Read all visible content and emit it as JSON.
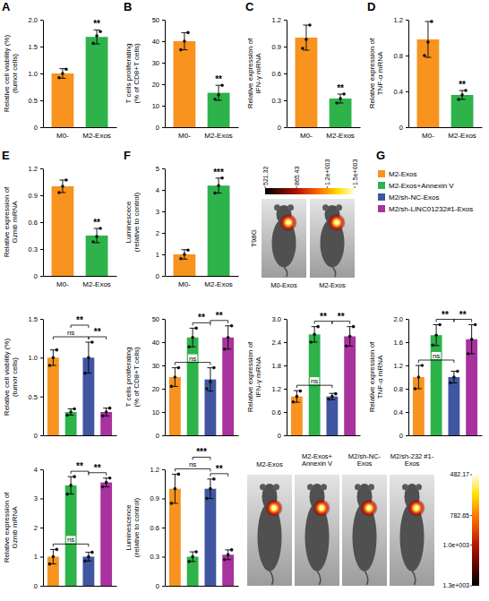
{
  "chart_data": [
    {
      "type": "bar",
      "panel": "A",
      "ylabel": "Relative cell viability (%)\n(tumor cells)",
      "categories": [
        "M0-",
        "M2-Exos"
      ],
      "values": [
        1.0,
        1.68
      ],
      "errors": [
        0.09,
        0.13
      ],
      "points": [
        [
          0.92,
          1.0,
          1.08
        ],
        [
          1.56,
          1.7,
          1.78
        ]
      ],
      "colors": [
        "#F7931E",
        "#2DB34A"
      ],
      "ylim": [
        0,
        2
      ],
      "yticks": [
        0,
        0.5,
        {
          "value": 1,
          "label": "1.0"
        },
        1.5,
        {
          "value": 2,
          "label": "2.0"
        }
      ],
      "annotations": [
        {
          "text": "**",
          "at": 1
        }
      ]
    },
    {
      "type": "bar",
      "panel": "B",
      "ylabel": "T cells proliferating\n(% of CD8+T cells)",
      "categories": [
        "M0-",
        "M2-Exos"
      ],
      "values": [
        40,
        16
      ],
      "errors": [
        4,
        3.5
      ],
      "points": [
        [
          36,
          40,
          44
        ],
        [
          13,
          15,
          19.5
        ]
      ],
      "colors": [
        "#F7931E",
        "#2DB34A"
      ],
      "ylim": [
        0,
        50
      ],
      "yticks": [
        0,
        10,
        20,
        30,
        40,
        50
      ],
      "annotations": [
        {
          "text": "**",
          "at": 1
        }
      ]
    },
    {
      "type": "bar",
      "panel": "C",
      "ylabel": "Relative expression of\nIFN-γ mRNA",
      "categories": [
        "M0-",
        "M2-Exos"
      ],
      "values": [
        1.0,
        0.32
      ],
      "errors": [
        0.14,
        0.05
      ],
      "points": [
        [
          0.88,
          0.98,
          1.14
        ],
        [
          0.27,
          0.32,
          0.37
        ]
      ],
      "colors": [
        "#F7931E",
        "#2DB34A"
      ],
      "ylim": [
        0,
        1.2
      ],
      "yticks": [
        0,
        0.3,
        0.6,
        0.9,
        1.2
      ],
      "annotations": [
        {
          "text": "**",
          "at": 1
        }
      ]
    },
    {
      "type": "bar",
      "panel": "D",
      "ylabel": "Relative expression of\nTNF-α mRNA",
      "categories": [
        "M0-",
        "M2-Exos"
      ],
      "values": [
        0.98,
        0.36
      ],
      "errors": [
        0.2,
        0.05
      ],
      "points": [
        [
          0.8,
          0.95,
          1.18
        ],
        [
          0.31,
          0.36,
          0.41
        ]
      ],
      "colors": [
        "#F7931E",
        "#2DB34A"
      ],
      "ylim": [
        0,
        1.2
      ],
      "yticks": [
        0,
        0.4,
        0.8,
        1.2
      ],
      "annotations": [
        {
          "text": "**",
          "at": 1
        }
      ]
    },
    {
      "type": "bar",
      "panel": "E",
      "ylabel": "Relative expression of\nGzmb mRNA",
      "categories": [
        "M0-",
        "M2-Exos"
      ],
      "values": [
        1.0,
        0.45
      ],
      "errors": [
        0.07,
        0.08
      ],
      "points": [
        [
          0.93,
          1.0,
          1.07
        ],
        [
          0.38,
          0.44,
          0.53
        ]
      ],
      "colors": [
        "#F7931E",
        "#2DB34A"
      ],
      "ylim": [
        0,
        1.2
      ],
      "yticks": [
        0,
        0.3,
        0.6,
        0.9,
        1.2
      ],
      "annotations": [
        {
          "text": "**",
          "at": 1
        }
      ]
    },
    {
      "type": "bar",
      "panel": "F",
      "ylabel": "Luminescece\n(relative to control)",
      "categories": [
        "M0-",
        "M2-Exos"
      ],
      "values": [
        1.0,
        4.2
      ],
      "errors": [
        0.22,
        0.35
      ],
      "points": [
        [
          0.8,
          1.0,
          1.2
        ],
        [
          3.85,
          4.2,
          4.55
        ]
      ],
      "colors": [
        "#F7931E",
        "#2DB34A"
      ],
      "ylim": [
        0,
        5
      ],
      "yticks": [
        0,
        1,
        2,
        3,
        4,
        5
      ],
      "annotations": [
        {
          "text": "***",
          "at": 1
        }
      ]
    },
    {
      "type": "bar",
      "ylabel": "Relative cell viability (%)\n(tumor cells)",
      "categories": [
        null,
        null,
        null,
        null
      ],
      "values": [
        1.0,
        0.3,
        1.0,
        0.3
      ],
      "errors": [
        0.1,
        0.04,
        0.2,
        0.05
      ],
      "points": [
        [
          0.9,
          1.0,
          1.1
        ],
        [
          0.26,
          0.3,
          0.34
        ],
        [
          0.8,
          1.0,
          1.2
        ],
        [
          0.25,
          0.3,
          0.35
        ]
      ],
      "colors": [
        "#F7931E",
        "#2DB34A",
        "#4056A1",
        "#A8329E"
      ],
      "ylim": [
        0,
        1.5
      ],
      "yticks": [
        0,
        0.5,
        {
          "value": 1,
          "label": "1.0"
        },
        1.5
      ],
      "annotations": [
        {
          "text": "ns",
          "from": 0,
          "to": 2
        },
        {
          "text": "**",
          "from": 1,
          "to": 2
        },
        {
          "text": "**",
          "from": 2,
          "to": 3
        }
      ]
    },
    {
      "type": "bar",
      "ylabel": "T cells proliferating\n(% of CD8+T cells)",
      "categories": [
        null,
        null,
        null,
        null
      ],
      "values": [
        25,
        42,
        24,
        42
      ],
      "errors": [
        4,
        4,
        5,
        5
      ],
      "points": [
        [
          21,
          25,
          29
        ],
        [
          38,
          42,
          46
        ],
        [
          20,
          23,
          29
        ],
        [
          37,
          42,
          47
        ]
      ],
      "colors": [
        "#F7931E",
        "#2DB34A",
        "#4056A1",
        "#A8329E"
      ],
      "ylim": [
        0,
        50
      ],
      "yticks": [
        0,
        10,
        20,
        30,
        40,
        50
      ],
      "annotations": [
        {
          "text": "ns",
          "from": 0,
          "to": 2
        },
        {
          "text": "**",
          "from": 1,
          "to": 2
        },
        {
          "text": "**",
          "from": 2,
          "to": 3
        }
      ]
    },
    {
      "type": "bar",
      "ylabel": "Relative expression of\nIFN-γ mRNA",
      "categories": [
        null,
        null,
        null,
        null
      ],
      "values": [
        1.0,
        2.6,
        1.0,
        2.55
      ],
      "errors": [
        0.15,
        0.2,
        0.08,
        0.25
      ],
      "points": [
        [
          0.86,
          1.0,
          1.14
        ],
        [
          2.4,
          2.6,
          2.8
        ],
        [
          0.93,
          1.0,
          1.07
        ],
        [
          2.3,
          2.55,
          2.8
        ]
      ],
      "colors": [
        "#F7931E",
        "#2DB34A",
        "#4056A1",
        "#A8329E"
      ],
      "ylim": [
        0,
        3
      ],
      "yticks": [
        0,
        0.6,
        1.2,
        1.8,
        2.4,
        {
          "value": 3,
          "label": "3.0"
        }
      ],
      "annotations": [
        {
          "text": "ns",
          "from": 0,
          "to": 2
        },
        {
          "text": "**",
          "from": 1,
          "to": 2
        },
        {
          "text": "**",
          "from": 2,
          "to": 3
        }
      ]
    },
    {
      "type": "bar",
      "ylabel": "Relative expression of\nTNF-α mRNA",
      "categories": [
        null,
        null,
        null,
        null
      ],
      "values": [
        1.0,
        1.72,
        1.0,
        1.65
      ],
      "errors": [
        0.2,
        0.18,
        0.1,
        0.25
      ],
      "points": [
        [
          0.8,
          1.0,
          1.2
        ],
        [
          1.55,
          1.72,
          1.9
        ],
        [
          0.9,
          1.0,
          1.1
        ],
        [
          1.4,
          1.65,
          1.9
        ]
      ],
      "colors": [
        "#F7931E",
        "#2DB34A",
        "#4056A1",
        "#A8329E"
      ],
      "ylim": [
        0,
        2
      ],
      "yticks": [
        0,
        0.4,
        0.8,
        1.2,
        1.6,
        {
          "value": 2,
          "label": "2.0"
        }
      ],
      "annotations": [
        {
          "text": "ns",
          "from": 0,
          "to": 2
        },
        {
          "text": "**",
          "from": 1,
          "to": 2
        },
        {
          "text": "**",
          "from": 2,
          "to": 3
        }
      ]
    },
    {
      "type": "bar",
      "ylabel": "Relative expression of\nGzmb mRNA",
      "categories": [
        null,
        null,
        null,
        null
      ],
      "values": [
        1.0,
        3.45,
        1.0,
        3.55
      ],
      "errors": [
        0.25,
        0.3,
        0.15,
        0.15
      ],
      "points": [
        [
          0.75,
          1.0,
          1.25
        ],
        [
          3.15,
          3.45,
          3.75
        ],
        [
          0.85,
          1.0,
          1.15
        ],
        [
          3.4,
          3.55,
          3.7
        ]
      ],
      "colors": [
        "#F7931E",
        "#2DB34A",
        "#4056A1",
        "#A8329E"
      ],
      "ylim": [
        0,
        4
      ],
      "yticks": [
        0,
        1,
        2,
        3,
        4
      ],
      "annotations": [
        {
          "text": "ns",
          "from": 0,
          "to": 2
        },
        {
          "text": "**",
          "from": 1,
          "to": 2
        },
        {
          "text": "**",
          "from": 2,
          "to": 3
        }
      ]
    },
    {
      "type": "bar",
      "ylabel": "Luminescence\n(relative to control)",
      "categories": [
        null,
        null,
        null,
        null
      ],
      "values": [
        1.0,
        0.3,
        1.0,
        0.32
      ],
      "errors": [
        0.15,
        0.05,
        0.1,
        0.05
      ],
      "points": [
        [
          0.85,
          1.0,
          1.15
        ],
        [
          0.25,
          0.3,
          0.35
        ],
        [
          0.9,
          1.0,
          1.1
        ],
        [
          0.27,
          0.32,
          0.37
        ]
      ],
      "colors": [
        "#F7931E",
        "#2DB34A",
        "#4056A1",
        "#A8329E"
      ],
      "ylim": [
        0,
        1.2
      ],
      "yticks": [
        0,
        0.3,
        0.6,
        0.9,
        1.2
      ],
      "annotations": [
        {
          "text": "ns",
          "from": 0,
          "to": 2
        },
        {
          "text": "***",
          "from": 1,
          "to": 2
        },
        {
          "text": "**",
          "from": 2,
          "to": 3
        }
      ]
    }
  ],
  "imaging": [
    {
      "cell_line": "T98G",
      "captions": [
        "M0-Exos",
        "M2-Exos"
      ],
      "colorbar": {
        "range": [
          521.32,
          1500
        ],
        "ticks": [
          521.32,
          865.43,
          {
            "value": 1200,
            "label": "1.2e+003"
          },
          {
            "value": 1500,
            "label": "1.5e+003"
          }
        ]
      }
    },
    {
      "captions": [
        "M2-Exos",
        "M2-Exos+ Annexin V",
        "M2/sh-NC-Exos",
        "M2/sh-232 #1-Exos"
      ],
      "colorbar": {
        "range": [
          482.17,
          1300
        ],
        "ticks": [
          482.17,
          782.65,
          {
            "value": 1000,
            "label": "1.0e+003"
          },
          {
            "value": 1300,
            "label": "1.3e+003"
          }
        ]
      }
    }
  ],
  "group_legend": {
    "panel": "G",
    "items": [
      {
        "name": "M2-Exos",
        "color": "#F7931E"
      },
      {
        "name": "M2-Exos+Annexin V",
        "color": "#2DB34A"
      },
      {
        "name": "M2/sh-NC-Exos",
        "color": "#4056A1"
      },
      {
        "name": "M2/sh-LINC01232#1-Exos",
        "color": "#A8329E"
      }
    ]
  }
}
